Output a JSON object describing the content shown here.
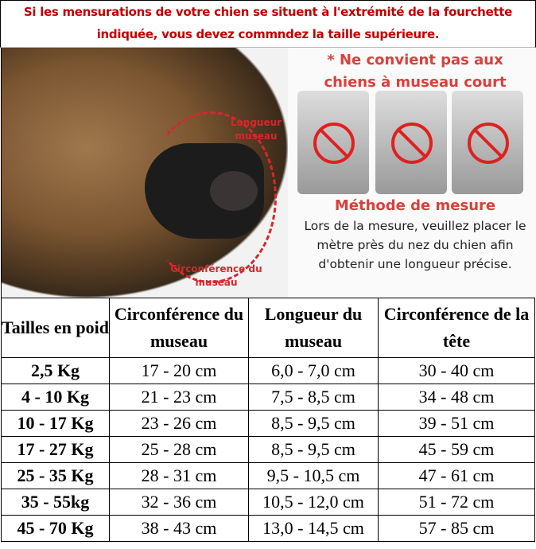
{
  "banner": {
    "line1": "Si les mensurations de votre chien se situent à l'extrémité de la fourchette",
    "line2": "indiquée, vous devez commndez la taille supérieure.",
    "color": "#c00000"
  },
  "photo": {
    "label_length": "Longueur museau",
    "label_circ": "Circonférence du museau",
    "warning": "* Ne convient pas aux chiens à museau court",
    "method_title": "Méthode de mesure",
    "method_text": "Lors de la mesure, veuillez placer le mètre près du nez du chien afin d'obtenir une longueur précise.",
    "accent": "#d9262c"
  },
  "table": {
    "headers": [
      "Tailles en poid",
      "Circonférence du museau",
      "Longueur du museau",
      "Circonférence de la tête"
    ],
    "rows": [
      [
        "2,5 Kg",
        "17 - 20 cm",
        "6,0 - 7,0 cm",
        "30 - 40 cm"
      ],
      [
        "4 - 10 Kg",
        "21 - 23 cm",
        "7,5 - 8,5 cm",
        "34 - 48 cm"
      ],
      [
        "10 - 17 Kg",
        "23 - 26 cm",
        "8,5 - 9,5 cm",
        "39 - 51 cm"
      ],
      [
        "17 - 27 Kg",
        "25 - 28 cm",
        "8,5 - 9,5 cm",
        "45 - 59 cm"
      ],
      [
        "25 - 35 Kg",
        "28 - 31 cm",
        "9,5 - 10,5 cm",
        "47 - 61 cm"
      ],
      [
        "35 - 55kg",
        "32 - 36 cm",
        "10,5 - 12,0 cm",
        "51 - 72 cm"
      ],
      [
        "45 - 70 Kg",
        "38 - 43 cm",
        "13,0 - 14,5 cm",
        "57 - 85 cm"
      ]
    ]
  }
}
